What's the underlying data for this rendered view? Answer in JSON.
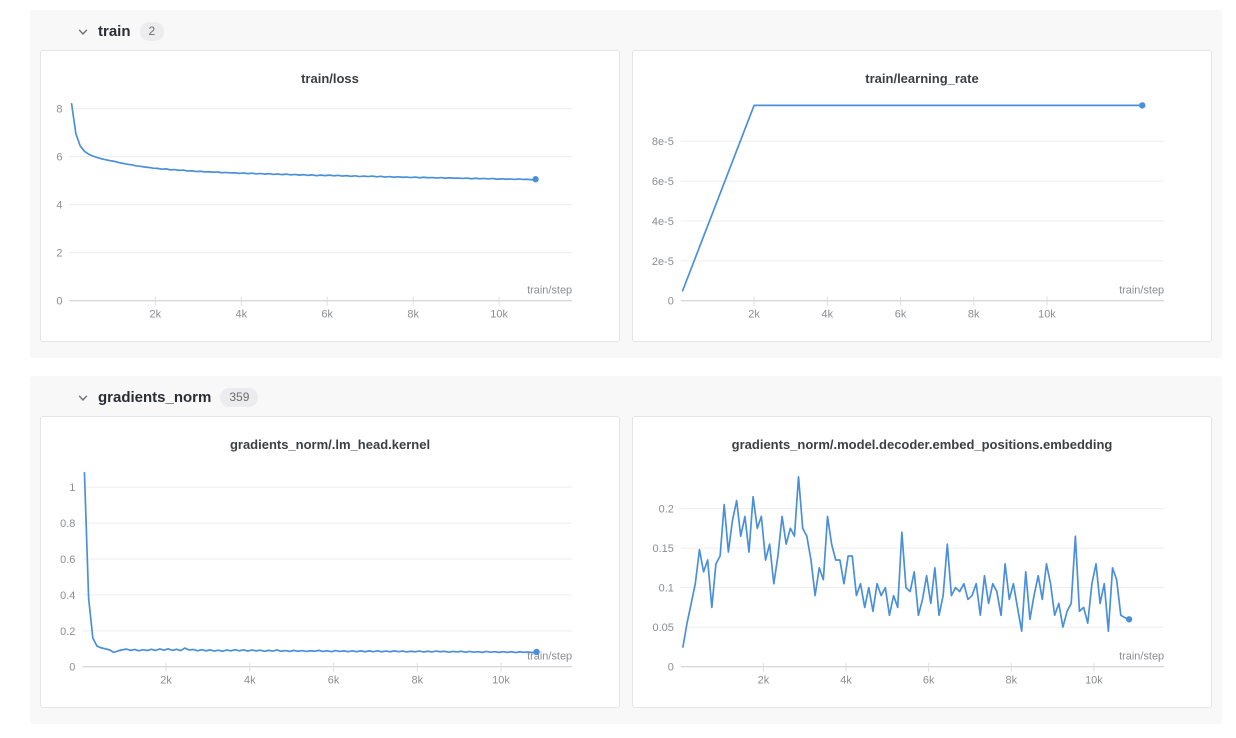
{
  "colors": {
    "accent": "#4a90d9",
    "panel_bg": "#f8f8f9",
    "card_border": "#e4e5e7",
    "grid": "#ededef",
    "axis": "#c9cbce",
    "tick_label": "#8b8d91",
    "title_text": "#3c4043"
  },
  "sections": [
    {
      "title": "train",
      "badge": "2",
      "chart_indices": [
        0,
        1
      ]
    },
    {
      "title": "gradients_norm",
      "badge": "359",
      "chart_indices": [
        2,
        3
      ]
    }
  ],
  "chart_data": [
    {
      "type": "line",
      "title": "train/loss",
      "xlabel": "train/step",
      "x_ticks": {
        "values": [
          2000,
          4000,
          6000,
          8000,
          10000
        ],
        "labels": [
          "2k",
          "4k",
          "6k",
          "8k",
          "10k"
        ]
      },
      "y_ticks": {
        "values": [
          0,
          2,
          4,
          6,
          8
        ],
        "labels": [
          "0",
          "2",
          "4",
          "6",
          "8"
        ]
      },
      "xlim": [
        0,
        11700
      ],
      "ylim": [
        0,
        8.3
      ],
      "grid": "horizontal",
      "legend": "none",
      "line_color": "#4a90d9",
      "end_dot": true,
      "series": [
        {
          "name": "train/loss",
          "x_start": 50,
          "x_step": 100,
          "values": [
            8.2,
            6.95,
            6.45,
            6.22,
            6.1,
            6.02,
            5.96,
            5.91,
            5.87,
            5.83,
            5.8,
            5.75,
            5.72,
            5.68,
            5.66,
            5.62,
            5.6,
            5.57,
            5.55,
            5.52,
            5.51,
            5.48,
            5.49,
            5.45,
            5.46,
            5.43,
            5.44,
            5.4,
            5.41,
            5.38,
            5.39,
            5.36,
            5.37,
            5.35,
            5.36,
            5.33,
            5.34,
            5.32,
            5.33,
            5.3,
            5.32,
            5.29,
            5.31,
            5.28,
            5.3,
            5.27,
            5.29,
            5.26,
            5.28,
            5.25,
            5.27,
            5.24,
            5.26,
            5.23,
            5.25,
            5.22,
            5.24,
            5.21,
            5.23,
            5.21,
            5.23,
            5.2,
            5.22,
            5.19,
            5.21,
            5.18,
            5.2,
            5.17,
            5.19,
            5.17,
            5.19,
            5.16,
            5.18,
            5.15,
            5.17,
            5.14,
            5.16,
            5.14,
            5.15,
            5.13,
            5.15,
            5.12,
            5.14,
            5.12,
            5.13,
            5.11,
            5.13,
            5.1,
            5.12,
            5.1,
            5.11,
            5.09,
            5.11,
            5.08,
            5.1,
            5.08,
            5.09,
            5.07,
            5.09,
            5.06,
            5.08,
            5.06,
            5.07,
            5.05,
            5.07,
            5.05,
            5.06,
            5.04,
            5.06
          ]
        }
      ]
    },
    {
      "type": "line",
      "title": "train/learning_rate",
      "xlabel": "train/step",
      "x_ticks": {
        "values": [
          2000,
          4000,
          6000,
          8000,
          10000
        ],
        "labels": [
          "2k",
          "4k",
          "6k",
          "8k",
          "10k"
        ]
      },
      "y_ticks": {
        "values": [
          0,
          2e-05,
          4e-05,
          6e-05,
          8e-05
        ],
        "labels": [
          "0",
          "2e-5",
          "4e-5",
          "6e-5",
          "8e-5"
        ]
      },
      "xlim": [
        0,
        13200
      ],
      "ylim": [
        0,
        0.0001
      ],
      "grid": "horizontal",
      "legend": "none",
      "line_color": "#4a90d9",
      "end_dot": true,
      "series": [
        {
          "name": "train/learning_rate",
          "x": [
            50,
            2000,
            12600
          ],
          "y": [
            5e-06,
            9.8e-05,
            9.8e-05
          ]
        }
      ]
    },
    {
      "type": "line",
      "title": "gradients_norm/.lm_head.kernel",
      "xlabel": "train/step",
      "x_ticks": {
        "values": [
          2000,
          4000,
          6000,
          8000,
          10000
        ],
        "labels": [
          "2k",
          "4k",
          "6k",
          "8k",
          "10k"
        ]
      },
      "y_ticks": {
        "values": [
          0,
          0.2,
          0.4,
          0.6,
          0.8,
          1
        ],
        "labels": [
          "0",
          "0.2",
          "0.4",
          "0.6",
          "0.8",
          "1"
        ]
      },
      "xlim": [
        0,
        11700
      ],
      "ylim": [
        0,
        1.11
      ],
      "grid": "horizontal",
      "legend": "none",
      "line_color": "#4a90d9",
      "end_dot": true,
      "series": [
        {
          "name": "gradients_norm/.lm_head.kernel",
          "x_start": 50,
          "x_step": 100,
          "values": [
            1.08,
            0.38,
            0.16,
            0.115,
            0.105,
            0.1,
            0.094,
            0.08,
            0.088,
            0.094,
            0.098,
            0.091,
            0.096,
            0.089,
            0.095,
            0.09,
            0.097,
            0.091,
            0.099,
            0.092,
            0.1,
            0.091,
            0.097,
            0.09,
            0.104,
            0.093,
            0.096,
            0.089,
            0.095,
            0.088,
            0.094,
            0.087,
            0.092,
            0.086,
            0.093,
            0.088,
            0.095,
            0.089,
            0.094,
            0.087,
            0.093,
            0.088,
            0.092,
            0.086,
            0.091,
            0.087,
            0.093,
            0.086,
            0.09,
            0.085,
            0.091,
            0.086,
            0.09,
            0.085,
            0.089,
            0.086,
            0.091,
            0.085,
            0.089,
            0.084,
            0.09,
            0.085,
            0.088,
            0.084,
            0.089,
            0.084,
            0.088,
            0.083,
            0.088,
            0.084,
            0.089,
            0.083,
            0.087,
            0.083,
            0.088,
            0.084,
            0.087,
            0.082,
            0.086,
            0.083,
            0.087,
            0.082,
            0.086,
            0.082,
            0.087,
            0.083,
            0.086,
            0.081,
            0.085,
            0.082,
            0.086,
            0.081,
            0.085,
            0.081,
            0.084,
            0.08,
            0.085,
            0.081,
            0.084,
            0.08,
            0.084,
            0.08,
            0.083,
            0.079,
            0.083,
            0.08,
            0.082,
            0.079,
            0.082
          ]
        }
      ]
    },
    {
      "type": "line",
      "title": "gradients_norm/.model.decoder.embed_positions.embedding",
      "xlabel": "train/step",
      "x_ticks": {
        "values": [
          2000,
          4000,
          6000,
          8000,
          10000
        ],
        "labels": [
          "2k",
          "4k",
          "6k",
          "8k",
          "10k"
        ]
      },
      "y_ticks": {
        "values": [
          0,
          0.05,
          0.1,
          0.15,
          0.2
        ],
        "labels": [
          "0",
          "0.05",
          "0.1",
          "0.15",
          "0.2"
        ]
      },
      "xlim": [
        0,
        11700
      ],
      "ylim": [
        0,
        0.252
      ],
      "grid": "horizontal",
      "legend": "none",
      "line_color": "#4a90d9",
      "end_dot": true,
      "series": [
        {
          "name": "gradients_norm/.model.decoder.embed_positions.embedding",
          "x_start": 50,
          "x_step": 100,
          "values": [
            0.025,
            0.055,
            0.08,
            0.105,
            0.148,
            0.12,
            0.135,
            0.075,
            0.13,
            0.14,
            0.205,
            0.145,
            0.185,
            0.21,
            0.165,
            0.19,
            0.145,
            0.215,
            0.175,
            0.19,
            0.135,
            0.155,
            0.105,
            0.14,
            0.19,
            0.155,
            0.175,
            0.165,
            0.24,
            0.175,
            0.165,
            0.135,
            0.09,
            0.125,
            0.11,
            0.19,
            0.155,
            0.135,
            0.135,
            0.105,
            0.14,
            0.14,
            0.09,
            0.105,
            0.075,
            0.1,
            0.07,
            0.105,
            0.09,
            0.1,
            0.065,
            0.09,
            0.075,
            0.17,
            0.1,
            0.095,
            0.12,
            0.065,
            0.085,
            0.115,
            0.08,
            0.125,
            0.065,
            0.09,
            0.155,
            0.09,
            0.1,
            0.095,
            0.105,
            0.085,
            0.09,
            0.105,
            0.065,
            0.115,
            0.08,
            0.105,
            0.095,
            0.065,
            0.13,
            0.085,
            0.105,
            0.075,
            0.045,
            0.12,
            0.06,
            0.09,
            0.115,
            0.085,
            0.13,
            0.105,
            0.065,
            0.08,
            0.05,
            0.07,
            0.08,
            0.165,
            0.07,
            0.075,
            0.055,
            0.105,
            0.13,
            0.08,
            0.105,
            0.045,
            0.125,
            0.11,
            0.065,
            0.062,
            0.06
          ]
        }
      ]
    }
  ]
}
